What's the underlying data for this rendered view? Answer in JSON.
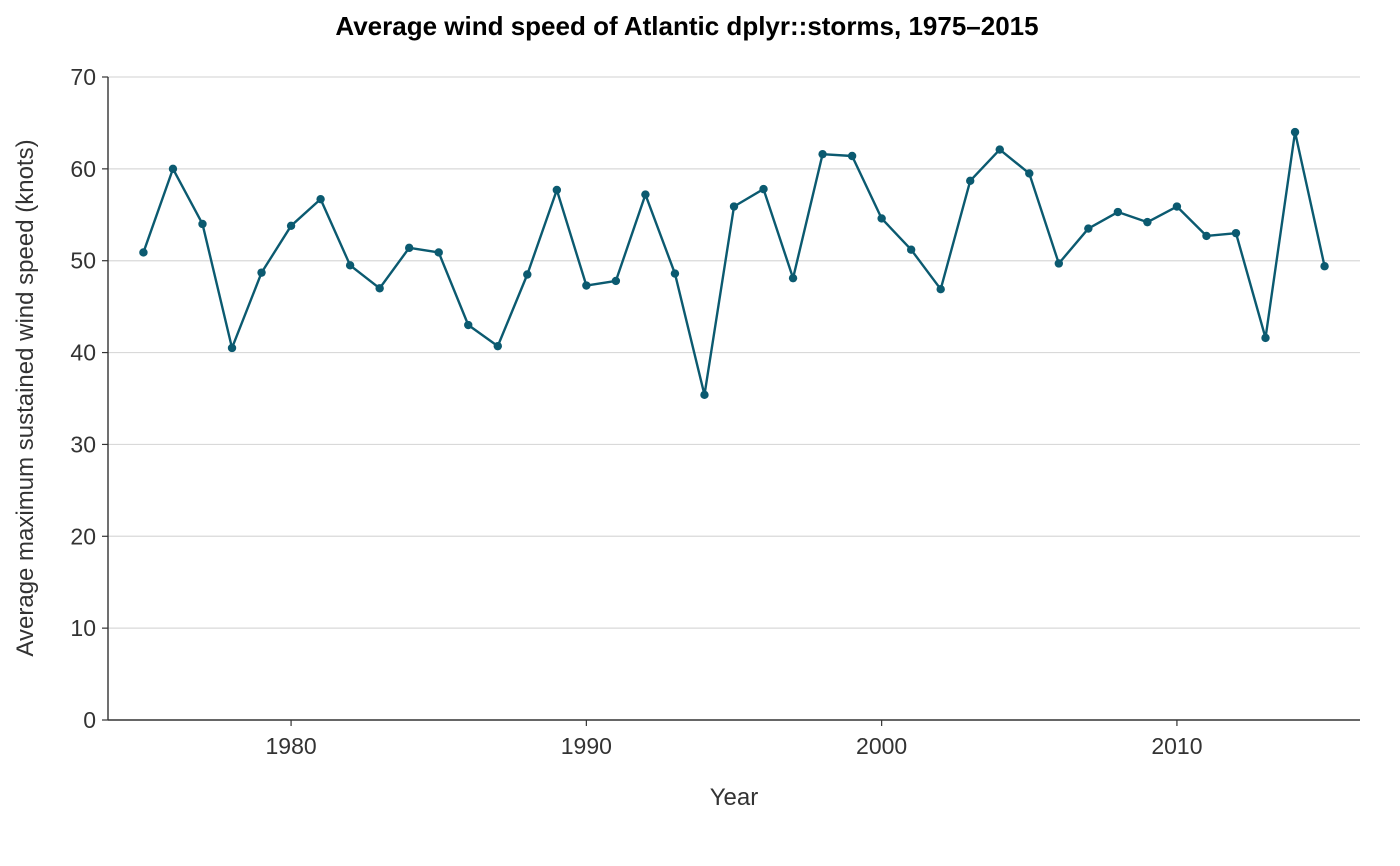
{
  "chart_data": {
    "type": "line",
    "title": "Average wind speed of Atlantic dplyr::storms, 1975–2015",
    "xlabel": "Year",
    "ylabel": "Average maximum sustained wind speed (knots)",
    "xlim": [
      1973.8,
      2016.2
    ],
    "ylim": [
      0,
      70
    ],
    "x_ticks": [
      1980,
      1990,
      2000,
      2010
    ],
    "y_ticks": [
      0,
      10,
      20,
      30,
      40,
      50,
      60,
      70
    ],
    "grid": "horizontal",
    "color": "#0b5a70",
    "series": [
      {
        "x": [
          1975,
          1976,
          1977,
          1978,
          1979,
          1980,
          1981,
          1982,
          1983,
          1984,
          1985,
          1986,
          1987,
          1988,
          1989,
          1990,
          1991,
          1992,
          1993,
          1994,
          1995,
          1996,
          1997,
          1998,
          1999,
          2000,
          2001,
          2002,
          2003,
          2004,
          2005,
          2006,
          2007,
          2008,
          2009,
          2010,
          2011,
          2012,
          2013,
          2014,
          2015
        ],
        "values": [
          50.9,
          60.0,
          54.0,
          40.5,
          48.7,
          53.8,
          56.7,
          49.5,
          47.0,
          51.4,
          50.9,
          43.0,
          40.7,
          48.5,
          57.7,
          47.3,
          47.8,
          57.2,
          48.6,
          35.4,
          55.9,
          57.8,
          48.1,
          61.6,
          61.4,
          54.6,
          51.2,
          46.9,
          58.7,
          62.1,
          59.5,
          49.7,
          53.5,
          55.3,
          54.2,
          55.9,
          52.7,
          53.0,
          41.6,
          64.0,
          49.4
        ]
      }
    ]
  }
}
